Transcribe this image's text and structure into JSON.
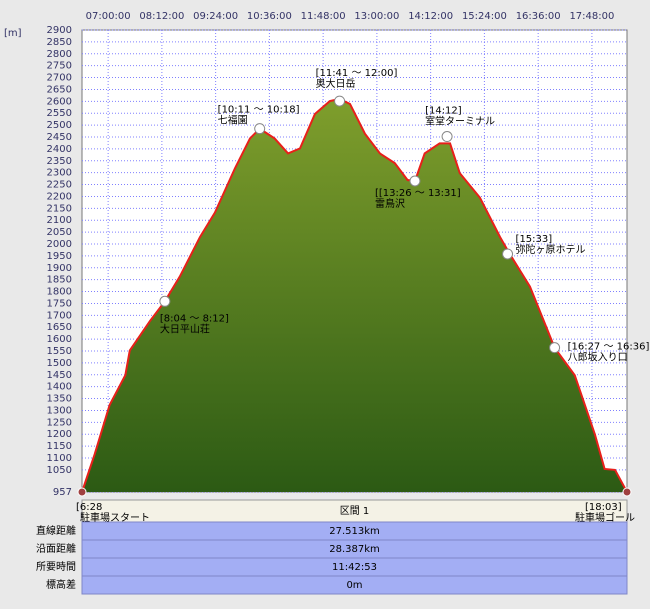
{
  "chart_data": {
    "type": "area",
    "y_label": "[m]",
    "x": [
      385,
      402,
      422,
      443,
      449,
      476,
      496,
      516,
      543,
      563,
      590,
      610,
      623,
      643,
      661,
      677,
      697,
      717,
      730,
      744,
      764,
      784,
      804,
      821,
      831,
      844,
      864,
      878,
      891,
      918,
      945,
      958,
      985,
      1018,
      1045,
      1072,
      1085,
      1099,
      1115
    ],
    "values": [
      957,
      1116,
      1323,
      1448,
      1552,
      1676,
      1759,
      1863,
      2029,
      2132,
      2319,
      2444,
      2485,
      2444,
      2381,
      2402,
      2547,
      2601,
      2610,
      2589,
      2464,
      2381,
      2340,
      2269,
      2265,
      2381,
      2423,
      2423,
      2298,
      2195,
      2029,
      1958,
      1821,
      1564,
      1448,
      1199,
      1054,
      1050,
      957
    ],
    "line_color": "#e8201a",
    "fill_top": "#7f9e2c",
    "fill_bottom": "#2c5a14",
    "xlim": [
      385,
      1115
    ],
    "ylim": [
      957,
      2900
    ],
    "xticks": [
      {
        "value": 420,
        "label": "07:00:00"
      },
      {
        "value": 492,
        "label": "08:12:00"
      },
      {
        "value": 564,
        "label": "09:24:00"
      },
      {
        "value": 636,
        "label": "10:36:00"
      },
      {
        "value": 708,
        "label": "11:48:00"
      },
      {
        "value": 780,
        "label": "13:00:00"
      },
      {
        "value": 852,
        "label": "14:12:00"
      },
      {
        "value": 924,
        "label": "15:24:00"
      },
      {
        "value": 996,
        "label": "16:36:00"
      },
      {
        "value": 1068,
        "label": "17:48:00"
      }
    ],
    "yticks": [
      2900,
      2850,
      2800,
      2750,
      2700,
      2650,
      2600,
      2550,
      2500,
      2450,
      2400,
      2350,
      2300,
      2250,
      2200,
      2150,
      2100,
      2050,
      2000,
      1950,
      1900,
      1850,
      1800,
      1750,
      1700,
      1650,
      1600,
      1550,
      1500,
      1450,
      1400,
      1350,
      1300,
      1250,
      1200,
      1150,
      1100,
      1050,
      957
    ],
    "grid": true,
    "annotations": [
      {
        "x": 385,
        "y": 957,
        "time": "[6:28",
        "label": "駐車場スタート"
      },
      {
        "x": 496,
        "y": 1759,
        "time": "[8:04 ～ 8:12]",
        "label": "大日平山荘"
      },
      {
        "x": 623,
        "y": 2485,
        "time": "[10:11 ～ 10:18]",
        "label": "七福園"
      },
      {
        "x": 730,
        "y": 2601,
        "time": "[11:41 ～ 12:00]",
        "label": "奥大日岳"
      },
      {
        "x": 831,
        "y": 2265,
        "time": "[[13:26 ～ 13:31]",
        "label": "雷鳥沢"
      },
      {
        "x": 874,
        "y": 2452,
        "time": "[14:12]",
        "label": "室堂ターミナル"
      },
      {
        "x": 955,
        "y": 1958,
        "time": "[15:33]",
        "label": "弥陀ヶ原ホテル"
      },
      {
        "x": 1018,
        "y": 1564,
        "time": "[16:27 ～ 16:36]",
        "label": "八郎坂入り口"
      },
      {
        "x": 1115,
        "y": 957,
        "time": "[18:03]",
        "label": "駐車場ゴール"
      }
    ]
  },
  "table": {
    "section": "区間 1",
    "rows": [
      [
        "直線距離",
        "27.513km"
      ],
      [
        "沿面距離",
        "28.387km"
      ],
      [
        "所要時間",
        "11:42:53"
      ],
      [
        "標高差",
        "0m"
      ]
    ]
  }
}
